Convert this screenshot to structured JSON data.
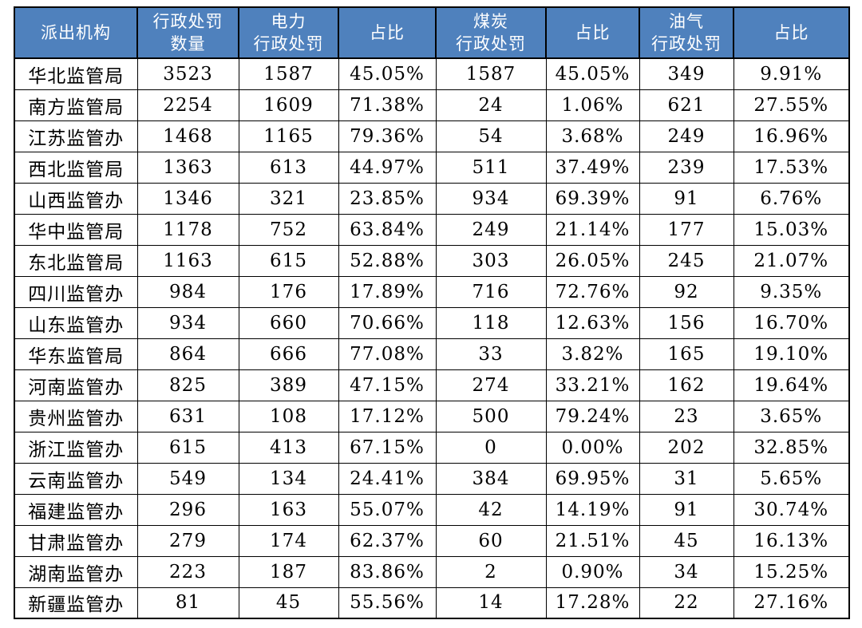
{
  "page": {
    "background": "#ffffff"
  },
  "table": {
    "header_bg": "#4f81bd",
    "header_text_color": "#ffffff",
    "border_color": "#000000",
    "body_text_color": "#000000"
  },
  "chart_data": {
    "type": "table",
    "title": "",
    "columns": [
      "派出机构",
      "行政处罚\n数量",
      "电力\n行政处罚",
      "占比",
      "煤炭\n行政处罚",
      "占比",
      "油气\n行政处罚",
      "占比"
    ],
    "rows": [
      [
        "华北监管局",
        "3523",
        "1587",
        "45.05%",
        "1587",
        "45.05%",
        "349",
        "9.91%"
      ],
      [
        "南方监管局",
        "2254",
        "1609",
        "71.38%",
        "24",
        "1.06%",
        "621",
        "27.55%"
      ],
      [
        "江苏监管办",
        "1468",
        "1165",
        "79.36%",
        "54",
        "3.68%",
        "249",
        "16.96%"
      ],
      [
        "西北监管局",
        "1363",
        "613",
        "44.97%",
        "511",
        "37.49%",
        "239",
        "17.53%"
      ],
      [
        "山西监管办",
        "1346",
        "321",
        "23.85%",
        "934",
        "69.39%",
        "91",
        "6.76%"
      ],
      [
        "华中监管局",
        "1178",
        "752",
        "63.84%",
        "249",
        "21.14%",
        "177",
        "15.03%"
      ],
      [
        "东北监管局",
        "1163",
        "615",
        "52.88%",
        "303",
        "26.05%",
        "245",
        "21.07%"
      ],
      [
        "四川监管办",
        "984",
        "176",
        "17.89%",
        "716",
        "72.76%",
        "92",
        "9.35%"
      ],
      [
        "山东监管办",
        "934",
        "660",
        "70.66%",
        "118",
        "12.63%",
        "156",
        "16.70%"
      ],
      [
        "华东监管局",
        "864",
        "666",
        "77.08%",
        "33",
        "3.82%",
        "165",
        "19.10%"
      ],
      [
        "河南监管办",
        "825",
        "389",
        "47.15%",
        "274",
        "33.21%",
        "162",
        "19.64%"
      ],
      [
        "贵州监管办",
        "631",
        "108",
        "17.12%",
        "500",
        "79.24%",
        "23",
        "3.65%"
      ],
      [
        "浙江监管办",
        "615",
        "413",
        "67.15%",
        "0",
        "0.00%",
        "202",
        "32.85%"
      ],
      [
        "云南监管办",
        "549",
        "134",
        "24.41%",
        "384",
        "69.95%",
        "31",
        "5.65%"
      ],
      [
        "福建监管办",
        "296",
        "163",
        "55.07%",
        "42",
        "14.19%",
        "91",
        "30.74%"
      ],
      [
        "甘肃监管办",
        "279",
        "174",
        "62.37%",
        "60",
        "21.51%",
        "45",
        "16.13%"
      ],
      [
        "湖南监管办",
        "223",
        "187",
        "83.86%",
        "2",
        "0.90%",
        "34",
        "15.25%"
      ],
      [
        "新疆监管办",
        "81",
        "45",
        "55.56%",
        "14",
        "17.28%",
        "22",
        "27.16%"
      ]
    ]
  }
}
